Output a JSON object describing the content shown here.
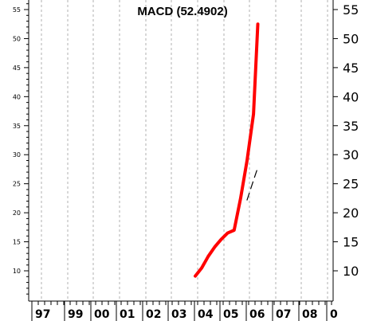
{
  "chart_data": {
    "type": "line",
    "title": "MACD (52.4902)",
    "xlabel": "",
    "ylabel": "",
    "x_tick_labels": [
      "97",
      "99",
      "00",
      "01",
      "02",
      "03",
      "04",
      "05",
      "06",
      "07",
      "08",
      "0"
    ],
    "y_ticks": [
      10,
      15,
      20,
      25,
      30,
      35,
      40,
      45,
      50,
      55
    ],
    "ylim": [
      5,
      57
    ],
    "grid": "vertical dashed",
    "series": [
      {
        "color": "#ff0000",
        "x": [
          "2004-01",
          "2004-04",
          "2004-07",
          "2004-10",
          "2005-01",
          "2005-04",
          "2005-07",
          "2005-10",
          "2006-01",
          "2006-04",
          "2006-06"
        ],
        "values": [
          9.1,
          10.5,
          12.5,
          14.1,
          15.4,
          16.5,
          17.0,
          22.5,
          29.0,
          37.0,
          52.4902
        ]
      },
      {
        "color": "#000000",
        "x": [
          "2006-01",
          "2006-04",
          "2006-06"
        ],
        "values": [
          22.2,
          25.6,
          27.8
        ]
      }
    ]
  }
}
